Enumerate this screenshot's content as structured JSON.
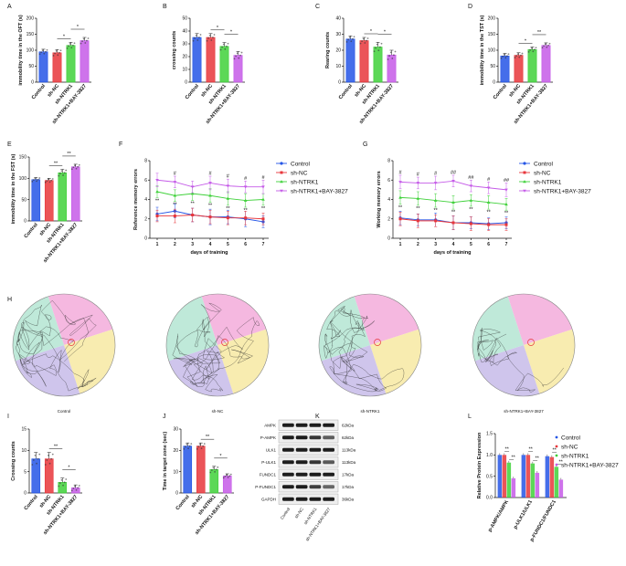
{
  "colors": {
    "control": "#2455e6",
    "shnc": "#e8363b",
    "shntrk1": "#3fd13a",
    "shntrk1bay": "#c55be8",
    "zone_pink": "#f5b8e0",
    "zone_yellow": "#f8ecb0",
    "zone_green": "#bfe9d9",
    "zone_purple": "#cfc5ec"
  },
  "group_labels": [
    "Control",
    "sh-NC",
    "sh-NTRK1",
    "sh-NTRK1+BAY-3827"
  ],
  "panels": {
    "A": {
      "letter": "A",
      "ylabel": "immobility time in the OFT (s)",
      "yticks": [
        "0",
        "50",
        "100",
        "150",
        "200"
      ],
      "sig": [
        "*",
        "*"
      ]
    },
    "B": {
      "letter": "B",
      "ylabel": "crossing counts",
      "yticks": [
        "0",
        "10",
        "20",
        "30",
        "40",
        "50"
      ],
      "sig": [
        "*",
        "*"
      ]
    },
    "C": {
      "letter": "C",
      "ylabel": "Rearing counts",
      "yticks": [
        "0",
        "10",
        "20",
        "30",
        "40"
      ],
      "sig": [
        "*",
        "*"
      ]
    },
    "D": {
      "letter": "D",
      "ylabel": "immobility time in the TST (s)",
      "yticks": [
        "0",
        "50",
        "100",
        "150",
        "200"
      ],
      "sig": [
        "*",
        "**"
      ]
    },
    "E": {
      "letter": "E",
      "ylabel": "immobility time in the FST (s)",
      "yticks": [
        "0",
        "50",
        "100",
        "150"
      ],
      "sig": [
        "**",
        "**"
      ]
    },
    "F": {
      "letter": "F",
      "ylabel": "Reference memory errors",
      "xlabel": "days of training",
      "yticks": [
        "0",
        "2",
        "4",
        "6",
        "8"
      ],
      "xticks": [
        "1",
        "2",
        "3",
        "4",
        "5",
        "6",
        "7"
      ],
      "top_sig": [
        "",
        "#",
        "",
        "#",
        "#",
        "#",
        "#"
      ],
      "bottom_sig": [
        "**",
        "**",
        "**",
        "**",
        "**",
        "**",
        "**"
      ]
    },
    "G": {
      "letter": "G",
      "ylabel": "Working memory errors",
      "xlabel": "days of training",
      "yticks": [
        "0",
        "2",
        "4",
        "6",
        "8"
      ],
      "xticks": [
        "1",
        "2",
        "3",
        "4",
        "5",
        "6",
        "7"
      ],
      "top_sig": [
        "#",
        "#",
        "#",
        "##",
        "##",
        "#",
        "##"
      ],
      "bottom_sig": [
        "**",
        "**",
        "**",
        "**",
        "**",
        "**",
        "**"
      ]
    },
    "H": {
      "letter": "H"
    },
    "I": {
      "letter": "I",
      "ylabel": "Crossing counts",
      "yticks": [
        "0",
        "5",
        "10",
        "15"
      ],
      "sig": [
        "**",
        "*"
      ]
    },
    "J": {
      "letter": "J",
      "ylabel": "Time in target zone (sec)",
      "yticks": [
        "0",
        "10",
        "20",
        "30"
      ],
      "sig": [
        "**",
        "*"
      ]
    },
    "K": {
      "letter": "K",
      "proteins": [
        "AMPK",
        "P-AMPK",
        "ULK1",
        "P-ULK1",
        "FUNDC1",
        "P-FUNDC1",
        "GAPDH"
      ],
      "sizes": [
        "62kDa",
        "62kDa",
        "113kDa",
        "113kDa",
        "17kDa",
        "17kDa",
        "36kDa"
      ],
      "lanes": [
        "Control",
        "sh-NC",
        "sh-NTRK1",
        "sh-NTRK1+BAY-3827"
      ]
    },
    "L": {
      "letter": "L",
      "ylabel": "Relative Protein Expression",
      "yticks": [
        "0.0",
        "0.5",
        "1.0",
        "1.5"
      ],
      "categories": [
        "p-AMPK/AMPK",
        "p-ULK1/ULK1",
        "p-FUNDC1/FUNDC1"
      ],
      "sig": [
        "**",
        "**",
        "**",
        "**",
        "**",
        "**"
      ]
    }
  },
  "maze_labels": [
    "Control",
    "sh-NC",
    "sh-NTRK1",
    "sh-NTRK1+BAY-3827"
  ],
  "chart_data": [
    {
      "panel": "A",
      "type": "bar",
      "title": "",
      "ylabel": "immobility time in the OFT (s)",
      "ylim": [
        0,
        200
      ],
      "categories": [
        "Control",
        "sh-NC",
        "sh-NTRK1",
        "sh-NTRK1+BAY-3827"
      ],
      "values": [
        95,
        92,
        115,
        130
      ],
      "errors": [
        8,
        10,
        10,
        10
      ]
    },
    {
      "panel": "B",
      "type": "bar",
      "ylabel": "crossing counts",
      "ylim": [
        0,
        50
      ],
      "categories": [
        "Control",
        "sh-NC",
        "sh-NTRK1",
        "sh-NTRK1+BAY-3827"
      ],
      "values": [
        35,
        35,
        28,
        21
      ],
      "errors": [
        3,
        3,
        3,
        3
      ]
    },
    {
      "panel": "C",
      "type": "bar",
      "ylabel": "Rearing counts",
      "ylim": [
        0,
        40
      ],
      "categories": [
        "Control",
        "sh-NC",
        "sh-NTRK1",
        "sh-NTRK1+BAY-3827"
      ],
      "values": [
        27,
        26,
        22,
        17
      ],
      "errors": [
        2,
        2,
        3,
        3
      ]
    },
    {
      "panel": "D",
      "type": "bar",
      "ylabel": "immobility time in the TST (s)",
      "ylim": [
        0,
        200
      ],
      "categories": [
        "Control",
        "sh-NC",
        "sh-NTRK1",
        "sh-NTRK1+BAY-3827"
      ],
      "values": [
        82,
        84,
        102,
        115
      ],
      "errors": [
        8,
        8,
        8,
        8
      ]
    },
    {
      "panel": "E",
      "type": "bar",
      "ylabel": "immobility time in the FST (s)",
      "ylim": [
        0,
        150
      ],
      "categories": [
        "Control",
        "sh-NC",
        "sh-NTRK1",
        "sh-NTRK1+BAY-3827"
      ],
      "values": [
        97,
        95,
        113,
        127
      ],
      "errors": [
        5,
        5,
        8,
        6
      ]
    },
    {
      "panel": "F",
      "type": "line",
      "ylabel": "Reference memory errors",
      "xlabel": "days of training",
      "ylim": [
        0,
        8
      ],
      "x": [
        1,
        2,
        3,
        4,
        5,
        6,
        7
      ],
      "series": [
        {
          "name": "Control",
          "values": [
            2.5,
            2.8,
            2.4,
            2.2,
            2.2,
            2.0,
            1.7
          ],
          "errors": [
            0.7,
            0.7,
            0.7,
            0.8,
            0.7,
            0.8,
            0.6
          ]
        },
        {
          "name": "sh-NC",
          "values": [
            2.3,
            2.3,
            2.4,
            2.2,
            2.1,
            2.1,
            2.0
          ],
          "errors": [
            0.6,
            0.7,
            0.7,
            0.7,
            0.7,
            0.7,
            0.6
          ]
        },
        {
          "name": "sh-NTRK1",
          "values": [
            4.8,
            4.4,
            4.6,
            4.4,
            4.1,
            3.9,
            4.0
          ],
          "errors": [
            0.6,
            0.6,
            0.7,
            0.7,
            0.7,
            0.7,
            0.6
          ]
        },
        {
          "name": "sh-NTRK1+BAY-3827",
          "values": [
            6.0,
            5.8,
            5.3,
            5.7,
            5.4,
            5.3,
            5.3
          ],
          "errors": [
            0.7,
            0.6,
            0.6,
            0.7,
            0.7,
            0.6,
            0.7
          ]
        }
      ]
    },
    {
      "panel": "G",
      "type": "line",
      "ylabel": "Working memory errors",
      "xlabel": "days of training",
      "ylim": [
        0,
        8
      ],
      "x": [
        1,
        2,
        3,
        4,
        5,
        6,
        7
      ],
      "series": [
        {
          "name": "Control",
          "values": [
            2.1,
            1.9,
            1.9,
            1.6,
            1.6,
            1.5,
            1.6
          ],
          "errors": [
            0.7,
            0.6,
            0.7,
            0.7,
            0.6,
            0.6,
            0.6
          ]
        },
        {
          "name": "sh-NC",
          "values": [
            2.0,
            1.8,
            1.8,
            1.6,
            1.5,
            1.4,
            1.4
          ],
          "errors": [
            0.7,
            0.7,
            0.6,
            0.7,
            0.7,
            0.6,
            0.6
          ]
        },
        {
          "name": "sh-NTRK1",
          "values": [
            4.2,
            4.1,
            3.9,
            3.7,
            3.9,
            3.7,
            3.5
          ],
          "errors": [
            0.7,
            0.7,
            0.7,
            0.7,
            0.6,
            0.7,
            0.6
          ]
        },
        {
          "name": "sh-NTRK1+BAY-3827",
          "values": [
            5.8,
            5.7,
            5.7,
            5.9,
            5.4,
            5.2,
            5.0
          ],
          "errors": [
            0.7,
            0.6,
            0.7,
            0.6,
            0.6,
            0.6,
            0.7
          ]
        }
      ]
    },
    {
      "panel": "I",
      "type": "bar",
      "ylabel": "Crossing counts",
      "ylim": [
        0,
        15
      ],
      "categories": [
        "Control",
        "sh-NC",
        "sh-NTRK1",
        "sh-NTRK1+BAY-3827"
      ],
      "values": [
        8,
        8,
        2.5,
        1.2
      ],
      "errors": [
        1.5,
        1.5,
        1,
        0.7
      ]
    },
    {
      "panel": "J",
      "type": "bar",
      "ylabel": "Time in target zone (sec)",
      "ylim": [
        0,
        30
      ],
      "categories": [
        "Control",
        "sh-NC",
        "sh-NTRK1",
        "sh-NTRK1+BAY-3827"
      ],
      "values": [
        22,
        22,
        11,
        8
      ],
      "errors": [
        1.5,
        1.5,
        1.5,
        1
      ]
    },
    {
      "panel": "L",
      "type": "bar",
      "ylabel": "Relative Protein Expression",
      "ylim": [
        0,
        1.5
      ],
      "categories": [
        "p-AMPK/AMPK",
        "p-ULK1/ULK1",
        "p-FUNDC1/FUNDC1"
      ],
      "series": [
        {
          "name": "Control",
          "values": [
            1.0,
            1.0,
            0.97
          ]
        },
        {
          "name": "sh-NC",
          "values": [
            1.0,
            1.0,
            0.95
          ]
        },
        {
          "name": "sh-NTRK1",
          "values": [
            0.82,
            0.8,
            0.72
          ]
        },
        {
          "name": "sh-NTRK1+BAY-3827",
          "values": [
            0.45,
            0.58,
            0.42
          ]
        }
      ]
    }
  ]
}
